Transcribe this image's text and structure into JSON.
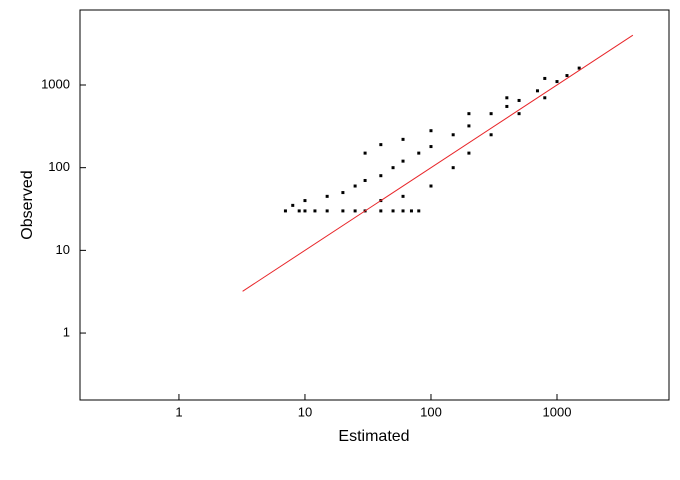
{
  "chart_data": {
    "type": "scatter",
    "x_label": "Estimated",
    "y_label": "Observed",
    "log_x": true,
    "log_y": true,
    "grid": false,
    "xlim": [
      0.164,
      7740
    ],
    "ylim": [
      0.155,
      8070
    ],
    "xticks": [
      1,
      10,
      100,
      1000
    ],
    "yticks": [
      1,
      10,
      100,
      1000
    ],
    "series": [
      {
        "color": "#000000",
        "x": [
          7,
          8,
          9,
          10,
          12,
          15,
          20,
          25,
          30,
          40,
          50,
          60,
          70,
          80,
          15,
          20,
          25,
          30,
          40,
          50,
          60,
          80,
          100,
          150,
          200,
          300,
          400,
          500,
          700,
          1000,
          1200,
          1500,
          30,
          40,
          60,
          100,
          200,
          400,
          800,
          40,
          60,
          100,
          150,
          200,
          300,
          500,
          800,
          10
        ],
        "y": [
          30,
          35,
          30,
          40,
          30,
          30,
          30,
          30,
          30,
          30,
          30,
          30,
          30,
          30,
          45,
          50,
          60,
          70,
          80,
          100,
          120,
          150,
          180,
          250,
          320,
          450,
          550,
          650,
          850,
          1100,
          1300,
          1600,
          150,
          190,
          220,
          280,
          450,
          700,
          1200,
          40,
          45,
          60,
          100,
          150,
          250,
          450,
          700,
          30
        ]
      }
    ],
    "line": {
      "color": "#e8262a",
      "x": [
        3.2,
        4000
      ],
      "y": [
        3.2,
        4000
      ]
    }
  }
}
